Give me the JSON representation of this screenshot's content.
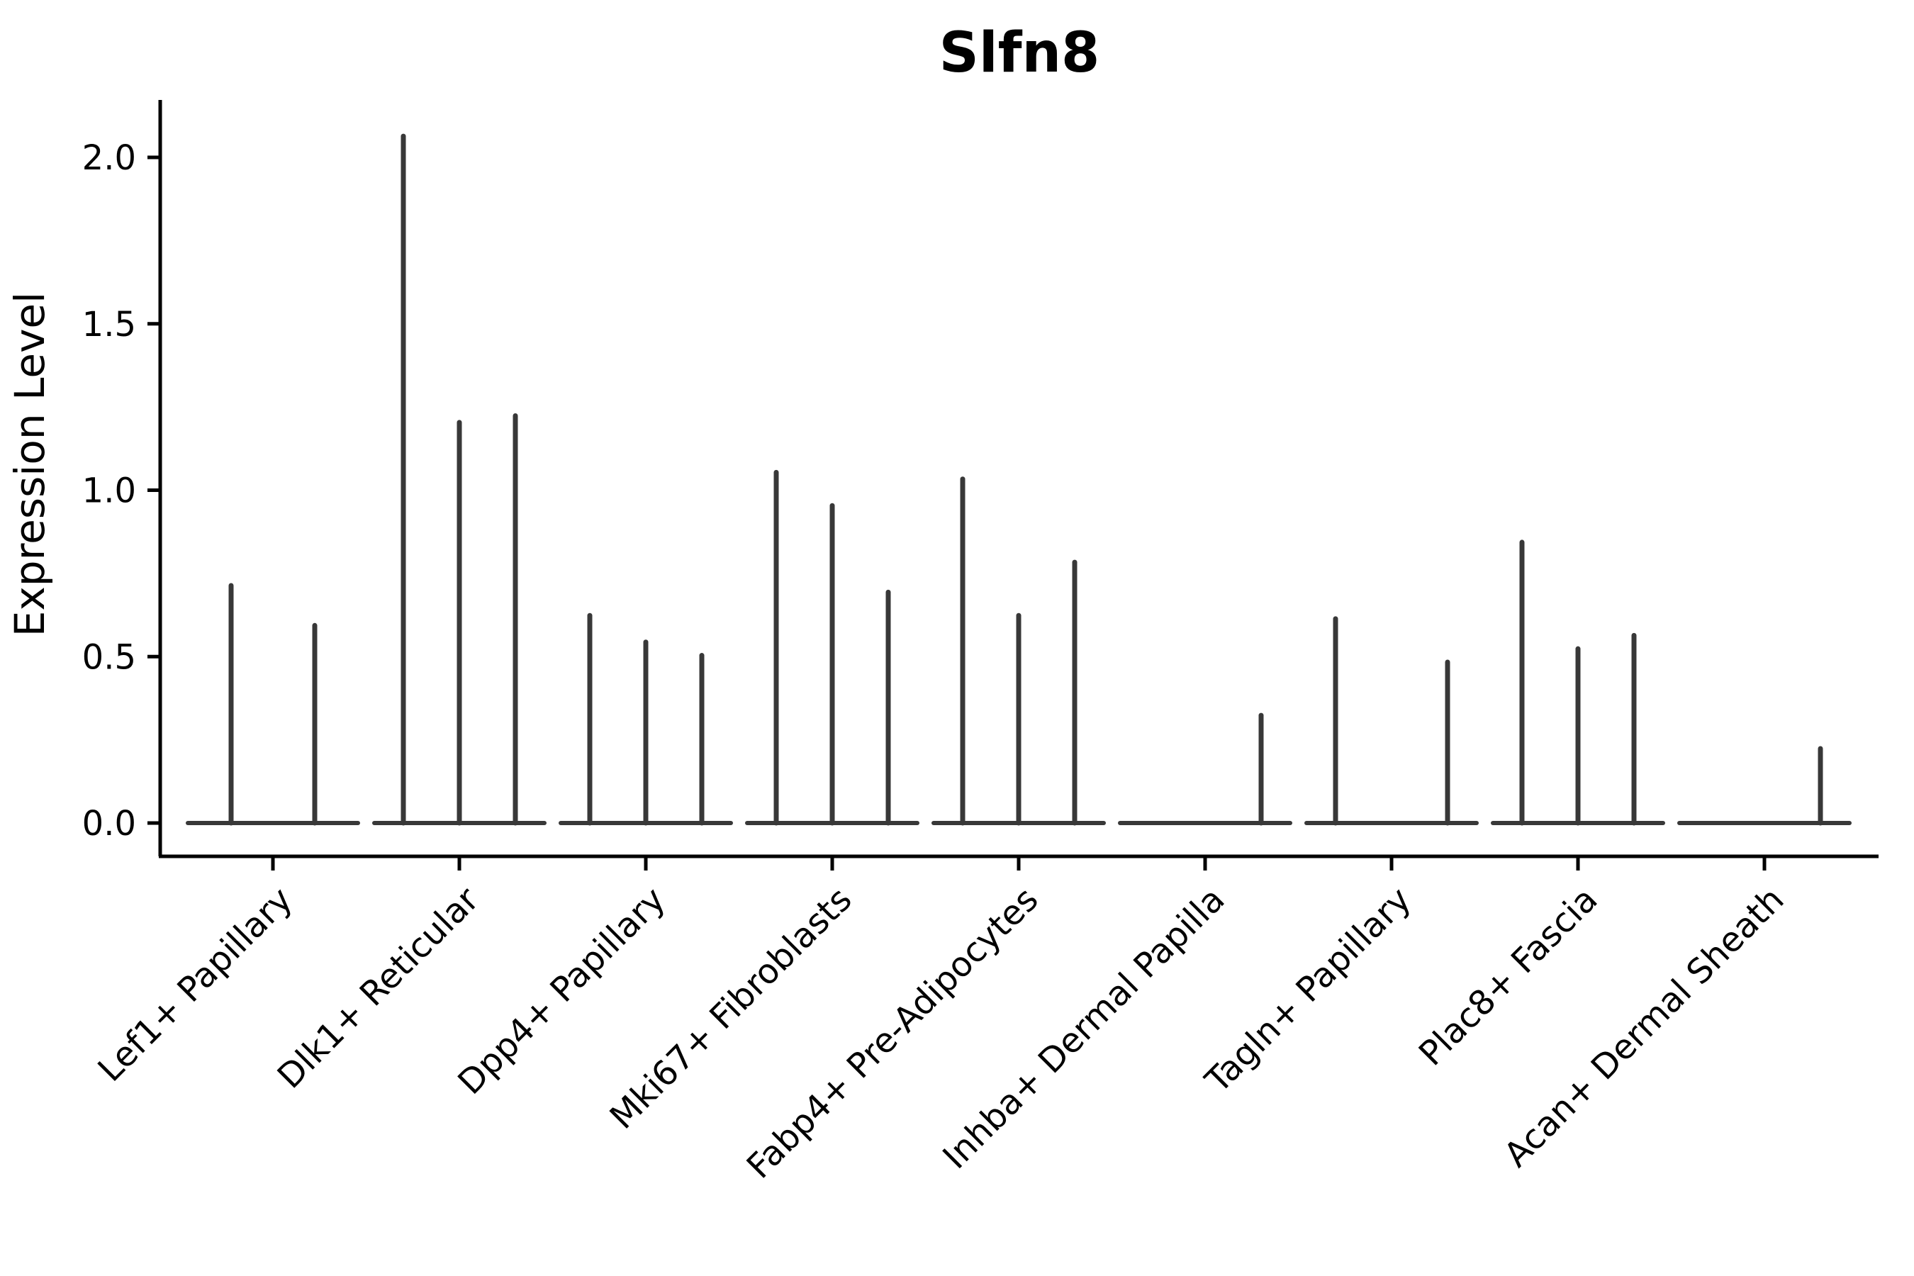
{
  "figure": {
    "title": "Slfn8",
    "y_axis_label": "Expression Level"
  },
  "chart_data": {
    "type": "violin",
    "title": "Slfn8",
    "xlabel": "",
    "ylabel": "Expression Level",
    "ylim": [
      0,
      2.17
    ],
    "yticks": [
      0,
      0.5,
      1,
      1.5,
      2
    ],
    "ytick_labels": [
      "0.0",
      "0.5",
      "1.0",
      "1.5",
      "2.0"
    ],
    "grid": false,
    "legend_position": "none",
    "note": "All violins are collapsed to thin needles at the baseline; value listed is the top of each needle (max expression).",
    "categories": [
      "Lef1+ Papillary",
      "Dlk1+ Reticular",
      "Dpp4+ Papillary",
      "Mki67+ Fibroblasts",
      "Fabp4+ Pre-Adipocytes",
      "Inhba+ Dermal Papilla",
      "Tagln+ Papillary",
      "Plac8+ Fascia",
      "Acan+ Dermal Sheath"
    ],
    "groups": [
      {
        "label": "Lef1+ Papillary",
        "violins": [
          {
            "peak": 0.72
          },
          {
            "peak": 0.6
          }
        ]
      },
      {
        "label": "Dlk1+ Reticular",
        "violins": [
          {
            "peak": 2.07
          },
          {
            "peak": 1.21
          },
          {
            "peak": 1.23
          }
        ]
      },
      {
        "label": "Dpp4+ Papillary",
        "violins": [
          {
            "peak": 0.63
          },
          {
            "peak": 0.55
          },
          {
            "peak": 0.51
          }
        ]
      },
      {
        "label": "Mki67+ Fibroblasts",
        "violins": [
          {
            "peak": 1.06
          },
          {
            "peak": 0.96
          },
          {
            "peak": 0.7
          }
        ]
      },
      {
        "label": "Fabp4+ Pre-Adipocytes",
        "violins": [
          {
            "peak": 1.04
          },
          {
            "peak": 0.63
          },
          {
            "peak": 0.79
          }
        ]
      },
      {
        "label": "Inhba+ Dermal Papilla",
        "violins": [
          {
            "peak": 0
          },
          {
            "peak": 0
          },
          {
            "peak": 0.33
          }
        ]
      },
      {
        "label": "Tagln+ Papillary",
        "violins": [
          {
            "peak": 0.62
          },
          {
            "peak": 0
          },
          {
            "peak": 0.49
          }
        ]
      },
      {
        "label": "Plac8+ Fascia",
        "violins": [
          {
            "peak": 0.85
          },
          {
            "peak": 0.53
          },
          {
            "peak": 0.57
          }
        ]
      },
      {
        "label": "Acan+ Dermal Sheath",
        "violins": [
          {
            "peak": 0
          },
          {
            "peak": 0
          },
          {
            "peak": 0.23
          }
        ]
      }
    ],
    "colors": {
      "violin": "#383838",
      "axis": "#000000",
      "text": "#000000",
      "background": "#ffffff"
    }
  }
}
